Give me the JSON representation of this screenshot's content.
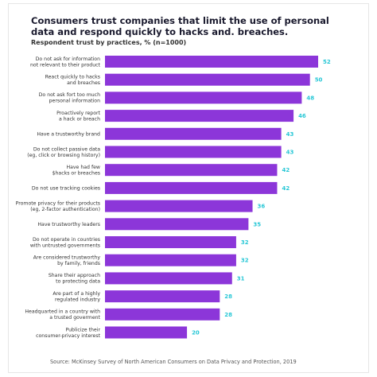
{
  "title": "Consumers trust companies that limit the use of personal data and respond quickly to hacks and. breaches.",
  "subtitle": "Respondent trust by practices, % (n=1000)",
  "source": "Source: McKinsey Survey of North American Consumers on Data Privacy and Protection, 2019",
  "colors": {
    "bar": "#8c36d9",
    "value": "#27c7d6"
  },
  "chart_data": {
    "type": "bar",
    "orientation": "horizontal",
    "categories": [
      [
        "Do not ask for information",
        "not relevant to their product"
      ],
      [
        "React quickly to hacks",
        "and breaches"
      ],
      [
        "Do not ask fort too much",
        "personal information"
      ],
      [
        "Proactively report",
        "a hack or breach"
      ],
      [
        "Have a trustworthy brand"
      ],
      [
        "Do not collect passive data",
        "(eg, click or browsing history)"
      ],
      [
        "Have had few",
        "$hacks or breaches"
      ],
      [
        "Do not use tracking cookies"
      ],
      [
        "Promote privacy for their products",
        "(eg, 2-factor authentication)"
      ],
      [
        "Have trustworthy leaders"
      ],
      [
        "Do not operate in countries",
        "with untrusted governments"
      ],
      [
        "Are considered trustworthy",
        "by family, friends"
      ],
      [
        "Share their approach",
        "to protecting data"
      ],
      [
        "Are part of a highly",
        "regulated industry"
      ],
      [
        "Headquarted in a country with",
        "a trusted goverment"
      ],
      [
        "Publicize their",
        "consumer-privacy interest"
      ]
    ],
    "values": [
      52,
      50,
      48,
      46,
      43,
      43,
      42,
      42,
      36,
      35,
      32,
      32,
      31,
      28,
      28,
      20
    ],
    "xlim": [
      0,
      52
    ],
    "grid": false,
    "legend": "none"
  }
}
